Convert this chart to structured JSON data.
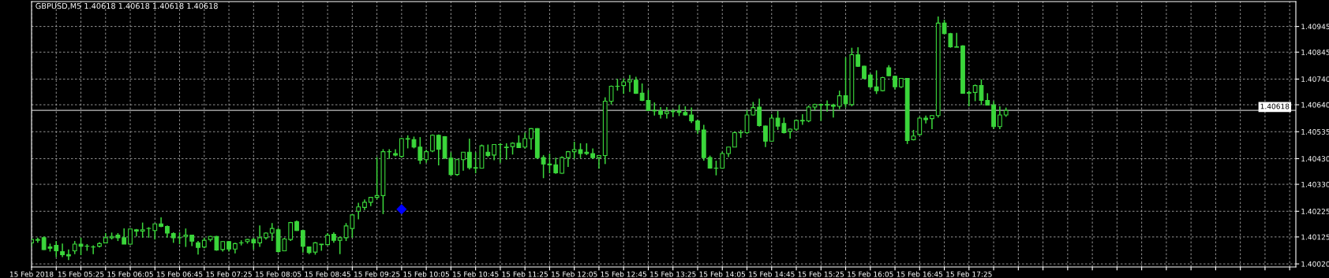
{
  "chart_data": {
    "type": "candlestick",
    "title": "GBPUSD,M5 1.40618 1.40618 1.40618 1.40618",
    "color": "#3bd63b",
    "grid": true,
    "x": [
      "2018-02-15T04:45",
      "2018-02-15T04:50",
      "2018-02-15T04:55",
      "2018-02-15T05:00",
      "2018-02-15T05:05",
      "2018-02-15T05:10",
      "2018-02-15T05:15",
      "2018-02-15T05:20",
      "2018-02-15T05:25",
      "2018-02-15T05:30",
      "2018-02-15T05:35",
      "2018-02-15T05:40",
      "2018-02-15T05:45",
      "2018-02-15T05:50",
      "2018-02-15T05:55",
      "2018-02-15T06:00",
      "2018-02-15T06:05",
      "2018-02-15T06:10",
      "2018-02-15T06:15",
      "2018-02-15T06:20",
      "2018-02-15T06:25",
      "2018-02-15T06:30",
      "2018-02-15T06:35",
      "2018-02-15T06:40",
      "2018-02-15T06:45",
      "2018-02-15T06:50",
      "2018-02-15T06:55",
      "2018-02-15T07:00",
      "2018-02-15T07:05",
      "2018-02-15T07:10",
      "2018-02-15T07:15",
      "2018-02-15T07:20",
      "2018-02-15T07:25",
      "2018-02-15T07:30",
      "2018-02-15T07:35",
      "2018-02-15T07:40",
      "2018-02-15T07:45",
      "2018-02-15T07:50",
      "2018-02-15T07:55",
      "2018-02-15T08:00",
      "2018-02-15T08:05",
      "2018-02-15T08:10",
      "2018-02-15T08:15",
      "2018-02-15T08:20",
      "2018-02-15T08:25",
      "2018-02-15T08:30",
      "2018-02-15T08:35",
      "2018-02-15T08:40",
      "2018-02-15T08:45",
      "2018-02-15T08:50",
      "2018-02-15T08:55",
      "2018-02-15T09:00",
      "2018-02-15T09:05",
      "2018-02-15T09:10",
      "2018-02-15T09:15",
      "2018-02-15T09:20",
      "2018-02-15T09:25",
      "2018-02-15T09:30",
      "2018-02-15T09:35",
      "2018-02-15T09:40",
      "2018-02-15T09:45",
      "2018-02-15T09:50",
      "2018-02-15T09:55",
      "2018-02-15T10:00",
      "2018-02-15T10:05",
      "2018-02-15T10:10",
      "2018-02-15T10:15",
      "2018-02-15T10:20",
      "2018-02-15T10:25",
      "2018-02-15T10:30",
      "2018-02-15T10:35",
      "2018-02-15T10:40",
      "2018-02-15T10:45",
      "2018-02-15T10:50",
      "2018-02-15T10:55",
      "2018-02-15T11:00",
      "2018-02-15T11:05",
      "2018-02-15T11:10",
      "2018-02-15T11:15",
      "2018-02-15T11:20",
      "2018-02-15T11:25",
      "2018-02-15T11:30",
      "2018-02-15T11:35",
      "2018-02-15T11:40",
      "2018-02-15T11:45",
      "2018-02-15T11:50",
      "2018-02-15T11:55",
      "2018-02-15T12:00",
      "2018-02-15T12:05",
      "2018-02-15T12:10",
      "2018-02-15T12:15",
      "2018-02-15T12:20",
      "2018-02-15T12:25",
      "2018-02-15T12:30",
      "2018-02-15T12:35",
      "2018-02-15T12:40",
      "2018-02-15T12:45",
      "2018-02-15T12:50",
      "2018-02-15T12:55",
      "2018-02-15T13:00",
      "2018-02-15T13:05",
      "2018-02-15T13:10",
      "2018-02-15T13:15",
      "2018-02-15T13:20",
      "2018-02-15T13:25",
      "2018-02-15T13:30",
      "2018-02-15T13:35",
      "2018-02-15T13:40",
      "2018-02-15T13:45",
      "2018-02-15T13:50",
      "2018-02-15T13:55",
      "2018-02-15T14:00",
      "2018-02-15T14:05",
      "2018-02-15T14:10",
      "2018-02-15T14:15",
      "2018-02-15T14:20",
      "2018-02-15T14:25",
      "2018-02-15T14:30",
      "2018-02-15T14:35",
      "2018-02-15T14:40",
      "2018-02-15T14:45",
      "2018-02-15T14:50",
      "2018-02-15T14:55",
      "2018-02-15T15:00",
      "2018-02-15T15:05",
      "2018-02-15T15:10",
      "2018-02-15T15:15",
      "2018-02-15T15:20",
      "2018-02-15T15:25",
      "2018-02-15T15:30",
      "2018-02-15T15:35",
      "2018-02-15T15:40",
      "2018-02-15T15:45",
      "2018-02-15T15:50",
      "2018-02-15T15:55",
      "2018-02-15T16:00",
      "2018-02-15T16:05",
      "2018-02-15T16:10",
      "2018-02-15T16:15",
      "2018-02-15T16:20",
      "2018-02-15T16:25",
      "2018-02-15T16:30",
      "2018-02-15T16:35",
      "2018-02-15T16:40",
      "2018-02-15T16:45",
      "2018-02-15T16:50",
      "2018-02-15T16:55",
      "2018-02-15T17:00",
      "2018-02-15T17:05",
      "2018-02-15T17:10",
      "2018-02-15T17:15",
      "2018-02-15T17:20",
      "2018-02-15T17:25",
      "2018-02-15T17:30",
      "2018-02-15T17:35",
      "2018-02-15T17:40",
      "2018-02-15T17:45",
      "2018-02-15T17:50",
      "2018-02-15T17:55"
    ],
    "ohlc": [
      [
        1.40102,
        1.40119,
        1.40086,
        1.40115
      ],
      [
        1.40112,
        1.40122,
        1.40102,
        1.40115
      ],
      [
        1.40122,
        1.40127,
        1.40074,
        1.40076
      ],
      [
        1.40086,
        1.40099,
        1.40068,
        1.40081
      ],
      [
        1.40092,
        1.40109,
        1.40046,
        1.40071
      ],
      [
        1.40068,
        1.40099,
        1.40046,
        1.40056
      ],
      [
        1.40056,
        1.40076,
        1.40035,
        1.40051
      ],
      [
        1.40071,
        1.40109,
        1.40058,
        1.40097
      ],
      [
        1.40097,
        1.40122,
        1.40054,
        1.40089
      ],
      [
        1.40089,
        1.40097,
        1.40071,
        1.40089
      ],
      [
        1.40086,
        1.40092,
        1.40058,
        1.40086
      ],
      [
        1.40089,
        1.40105,
        1.40084,
        1.40099
      ],
      [
        1.40102,
        1.4014,
        1.40102,
        1.40122
      ],
      [
        1.40122,
        1.40142,
        1.40115,
        1.40127
      ],
      [
        1.40132,
        1.4014,
        1.40109,
        1.40122
      ],
      [
        1.40122,
        1.40158,
        1.40097,
        1.40097
      ],
      [
        1.40097,
        1.40158,
        1.40095,
        1.40156
      ],
      [
        1.40153,
        1.40156,
        1.40127,
        1.40148
      ],
      [
        1.40148,
        1.40181,
        1.40122,
        1.40153
      ],
      [
        1.40158,
        1.40163,
        1.40122,
        1.40158
      ],
      [
        1.4015,
        1.40176,
        1.40115,
        1.40176
      ],
      [
        1.40176,
        1.40201,
        1.40163,
        1.40166
      ],
      [
        1.40166,
        1.4017,
        1.40122,
        1.4014
      ],
      [
        1.40138,
        1.40143,
        1.40102,
        1.40122
      ],
      [
        1.40122,
        1.40143,
        1.40097,
        1.40122
      ],
      [
        1.40127,
        1.40158,
        1.40086,
        1.40132
      ],
      [
        1.40132,
        1.40132,
        1.40089,
        1.40109
      ],
      [
        1.40102,
        1.40109,
        1.40056,
        1.40084
      ],
      [
        1.40086,
        1.40122,
        1.40081,
        1.40112
      ],
      [
        1.40115,
        1.40129,
        1.40107,
        1.40127
      ],
      [
        1.40127,
        1.40129,
        1.40071,
        1.40074
      ],
      [
        1.40076,
        1.40109,
        1.40068,
        1.40107
      ],
      [
        1.40107,
        1.40109,
        1.40068,
        1.40078
      ],
      [
        1.40078,
        1.40102,
        1.40061,
        1.40099
      ],
      [
        1.40102,
        1.40112,
        1.40092,
        1.40102
      ],
      [
        1.40107,
        1.40117,
        1.40099,
        1.40115
      ],
      [
        1.40115,
        1.40122,
        1.40076,
        1.40102
      ],
      [
        1.40102,
        1.4017,
        1.40086,
        1.40122
      ],
      [
        1.40122,
        1.40143,
        1.40115,
        1.4014
      ],
      [
        1.4014,
        1.40179,
        1.40109,
        1.40158
      ],
      [
        1.40153,
        1.4016,
        1.40064,
        1.40068
      ],
      [
        1.40071,
        1.40122,
        1.40071,
        1.40117
      ],
      [
        1.40115,
        1.40184,
        1.40109,
        1.40181
      ],
      [
        1.40184,
        1.40189,
        1.40148,
        1.4015
      ],
      [
        1.4015,
        1.40153,
        1.40064,
        1.40089
      ],
      [
        1.40086,
        1.40086,
        1.40058,
        1.40064
      ],
      [
        1.40066,
        1.40105,
        1.40056,
        1.40102
      ],
      [
        1.40097,
        1.40097,
        1.40071,
        1.40095
      ],
      [
        1.40095,
        1.4014,
        1.40092,
        1.40132
      ],
      [
        1.40135,
        1.40143,
        1.40102,
        1.40112
      ],
      [
        1.40112,
        1.40127,
        1.40058,
        1.40122
      ],
      [
        1.40122,
        1.40179,
        1.40109,
        1.40168
      ],
      [
        1.40158,
        1.40214,
        1.40122,
        1.40211
      ],
      [
        1.40225,
        1.40258,
        1.40194,
        1.40242
      ],
      [
        1.4024,
        1.40271,
        1.4023,
        1.4026
      ],
      [
        1.4026,
        1.40281,
        1.40245,
        1.40279
      ],
      [
        1.40279,
        1.40436,
        1.40271,
        1.40286
      ],
      [
        1.40286,
        1.40467,
        1.40214,
        1.40457
      ],
      [
        1.40457,
        1.40467,
        1.40429,
        1.40457
      ],
      [
        1.4045,
        1.40467,
        1.40439,
        1.40444
      ],
      [
        1.40439,
        1.40511,
        1.40434,
        1.40508
      ],
      [
        1.40508,
        1.40521,
        1.4047,
        1.40506
      ],
      [
        1.40504,
        1.40516,
        1.4047,
        1.40475
      ],
      [
        1.40475,
        1.40514,
        1.40409,
        1.40424
      ],
      [
        1.40426,
        1.40465,
        1.40414,
        1.40457
      ],
      [
        1.4046,
        1.40524,
        1.40455,
        1.40521
      ],
      [
        1.40521,
        1.40524,
        1.40404,
        1.40467
      ],
      [
        1.40516,
        1.40518,
        1.40429,
        1.40432
      ],
      [
        1.40432,
        1.40455,
        1.40365,
        1.40368
      ],
      [
        1.40368,
        1.40429,
        1.40363,
        1.40426
      ],
      [
        1.40426,
        1.40455,
        1.40383,
        1.40455
      ],
      [
        1.40455,
        1.40508,
        1.40388,
        1.40395
      ],
      [
        1.40395,
        1.40455,
        1.40373,
        1.40393
      ],
      [
        1.40393,
        1.40485,
        1.40393,
        1.4048
      ],
      [
        1.40455,
        1.40485,
        1.40436,
        1.40442
      ],
      [
        1.40444,
        1.40487,
        1.40424,
        1.40485
      ],
      [
        1.40485,
        1.4049,
        1.40414,
        1.40485
      ],
      [
        1.40473,
        1.4049,
        1.40426,
        1.40475
      ],
      [
        1.40477,
        1.40494,
        1.40446,
        1.4049
      ],
      [
        1.4049,
        1.40521,
        1.40473,
        1.40473
      ],
      [
        1.40475,
        1.40531,
        1.4047,
        1.40508
      ],
      [
        1.40508,
        1.40549,
        1.40465,
        1.40547
      ],
      [
        1.40547,
        1.40549,
        1.40429,
        1.40434
      ],
      [
        1.40434,
        1.40444,
        1.40354,
        1.40409
      ],
      [
        1.40409,
        1.4045,
        1.40373,
        1.40406
      ],
      [
        1.40406,
        1.40434,
        1.40371,
        1.40375
      ],
      [
        1.40373,
        1.40439,
        1.40371,
        1.40434
      ],
      [
        1.40434,
        1.4046,
        1.40398,
        1.40457
      ],
      [
        1.40457,
        1.40496,
        1.40429,
        1.40465
      ],
      [
        1.40465,
        1.4049,
        1.40432,
        1.4045
      ],
      [
        1.40455,
        1.4049,
        1.40444,
        1.4045
      ],
      [
        1.4045,
        1.4047,
        1.40429,
        1.40434
      ],
      [
        1.40434,
        1.40444,
        1.40391,
        1.40442
      ],
      [
        1.40442,
        1.40669,
        1.40409,
        1.40654
      ],
      [
        1.40654,
        1.40715,
        1.40641,
        1.40712
      ],
      [
        1.40712,
        1.40741,
        1.40695,
        1.40712
      ],
      [
        1.40715,
        1.40743,
        1.40682,
        1.40729
      ],
      [
        1.40729,
        1.40756,
        1.4069,
        1.40736
      ],
      [
        1.40736,
        1.40749,
        1.40682,
        1.40685
      ],
      [
        1.40685,
        1.40723,
        1.40654,
        1.40657
      ],
      [
        1.40657,
        1.40698,
        1.40616,
        1.40618
      ],
      [
        1.40618,
        1.40649,
        1.40598,
        1.40616
      ],
      [
        1.40616,
        1.40631,
        1.40586,
        1.40603
      ],
      [
        1.40606,
        1.40631,
        1.40586,
        1.40613
      ],
      [
        1.40613,
        1.40623,
        1.40593,
        1.40616
      ],
      [
        1.40616,
        1.40639,
        1.40596,
        1.4061
      ],
      [
        1.4061,
        1.40634,
        1.40598,
        1.406
      ],
      [
        1.406,
        1.40629,
        1.40569,
        1.40577
      ],
      [
        1.40577,
        1.40582,
        1.40526,
        1.40542
      ],
      [
        1.40542,
        1.40562,
        1.40422,
        1.40434
      ],
      [
        1.40434,
        1.40442,
        1.40391,
        1.40393
      ],
      [
        1.40393,
        1.40422,
        1.40365,
        1.40393
      ],
      [
        1.40393,
        1.40457,
        1.40391,
        1.4045
      ],
      [
        1.4045,
        1.40475,
        1.40436,
        1.40475
      ],
      [
        1.40475,
        1.40536,
        1.40475,
        1.40531
      ],
      [
        1.40531,
        1.40542,
        1.40511,
        1.40531
      ],
      [
        1.40531,
        1.4062,
        1.40526,
        1.406
      ],
      [
        1.406,
        1.40651,
        1.40598,
        1.40629
      ],
      [
        1.40631,
        1.40664,
        1.40555,
        1.40559
      ],
      [
        1.40557,
        1.40559,
        1.40475,
        1.40498
      ],
      [
        1.40498,
        1.40603,
        1.40496,
        1.40588
      ],
      [
        1.40588,
        1.40616,
        1.40542,
        1.40557
      ],
      [
        1.40567,
        1.4059,
        1.40528,
        1.40531
      ],
      [
        1.40536,
        1.40547,
        1.40508,
        1.40545
      ],
      [
        1.40545,
        1.40582,
        1.40539,
        1.40579
      ],
      [
        1.40579,
        1.40603,
        1.40562,
        1.40577
      ],
      [
        1.40577,
        1.40637,
        1.40572,
        1.40631
      ],
      [
        1.40631,
        1.40644,
        1.40618,
        1.40641
      ],
      [
        1.40641,
        1.40644,
        1.40577,
        1.40639
      ],
      [
        1.40639,
        1.40657,
        1.40613,
        1.40641
      ],
      [
        1.40639,
        1.40644,
        1.4059,
        1.40634
      ],
      [
        1.40634,
        1.40695,
        1.40623,
        1.40675
      ],
      [
        1.40675,
        1.40825,
        1.40629,
        1.40644
      ],
      [
        1.40641,
        1.40862,
        1.40634,
        1.40835
      ],
      [
        1.40835,
        1.40864,
        1.40787,
        1.4079
      ],
      [
        1.4079,
        1.40792,
        1.40739,
        1.40743
      ],
      [
        1.40756,
        1.40761,
        1.40705,
        1.4071
      ],
      [
        1.4071,
        1.40774,
        1.40682,
        1.40695
      ],
      [
        1.40695,
        1.40749,
        1.40692,
        1.40746
      ],
      [
        1.40784,
        1.40794,
        1.40751,
        1.40753
      ],
      [
        1.40751,
        1.40753,
        1.407,
        1.4071
      ],
      [
        1.4071,
        1.40743,
        1.40705,
        1.40743
      ],
      [
        1.40743,
        1.40743,
        1.40487,
        1.40501
      ],
      [
        1.40504,
        1.40542,
        1.40501,
        1.40518
      ],
      [
        1.40524,
        1.40593,
        1.40521,
        1.40588
      ],
      [
        1.40588,
        1.40598,
        1.40567,
        1.40582
      ],
      [
        1.40586,
        1.406,
        1.40545,
        1.40598
      ],
      [
        1.40598,
        1.40984,
        1.4059,
        1.40958
      ],
      [
        1.40958,
        1.40971,
        1.40915,
        1.40917
      ],
      [
        1.40917,
        1.4092,
        1.40862,
        1.40866
      ],
      [
        1.40866,
        1.4092,
        1.40864,
        1.40864
      ],
      [
        1.40869,
        1.40872,
        1.40685,
        1.40685
      ],
      [
        1.40685,
        1.40695,
        1.40634,
        1.40688
      ],
      [
        1.40688,
        1.40719,
        1.40654,
        1.40715
      ],
      [
        1.40715,
        1.40739,
        1.40639,
        1.40657
      ],
      [
        1.40657,
        1.40685,
        1.40639,
        1.40639
      ],
      [
        1.40639,
        1.40654,
        1.40545,
        1.40555
      ],
      [
        1.40555,
        1.40634,
        1.40545,
        1.406
      ],
      [
        1.406,
        1.40629,
        1.40593,
        1.40618
      ]
    ],
    "series": [
      {
        "type": "scatter",
        "x": [
          "2018-02-15T09:45"
        ],
        "values": [
          1.40233
        ],
        "color": "#0000ff",
        "marker": "diamond"
      }
    ],
    "xlim": [
      "2018-02-15T04:45",
      "2018-02-15T21:50"
    ],
    "xticks": [
      {
        "value": "2018-02-15T04:45",
        "label": "15 Feb 2018"
      },
      {
        "value": "2018-02-15T05:05",
        "label": null
      },
      {
        "value": "2018-02-15T05:25",
        "label": "15 Feb 05:25"
      },
      {
        "value": "2018-02-15T05:45",
        "label": null
      },
      {
        "value": "2018-02-15T06:05",
        "label": "15 Feb 06:05"
      },
      {
        "value": "2018-02-15T06:25",
        "label": null
      },
      {
        "value": "2018-02-15T06:45",
        "label": "15 Feb 06:45"
      },
      {
        "value": "2018-02-15T07:05",
        "label": null
      },
      {
        "value": "2018-02-15T07:25",
        "label": "15 Feb 07:25"
      },
      {
        "value": "2018-02-15T07:45",
        "label": null
      },
      {
        "value": "2018-02-15T08:05",
        "label": "15 Feb 08:05"
      },
      {
        "value": "2018-02-15T08:25",
        "label": null
      },
      {
        "value": "2018-02-15T08:45",
        "label": "15 Feb 08:45"
      },
      {
        "value": "2018-02-15T09:05",
        "label": null
      },
      {
        "value": "2018-02-15T09:25",
        "label": "15 Feb 09:25"
      },
      {
        "value": "2018-02-15T09:45",
        "label": null
      },
      {
        "value": "2018-02-15T10:05",
        "label": "15 Feb 10:05"
      },
      {
        "value": "2018-02-15T10:25",
        "label": null
      },
      {
        "value": "2018-02-15T10:45",
        "label": "15 Feb 10:45"
      },
      {
        "value": "2018-02-15T11:05",
        "label": null
      },
      {
        "value": "2018-02-15T11:25",
        "label": "15 Feb 11:25"
      },
      {
        "value": "2018-02-15T11:45",
        "label": null
      },
      {
        "value": "2018-02-15T12:05",
        "label": "15 Feb 12:05"
      },
      {
        "value": "2018-02-15T12:25",
        "label": null
      },
      {
        "value": "2018-02-15T12:45",
        "label": "15 Feb 12:45"
      },
      {
        "value": "2018-02-15T13:05",
        "label": null
      },
      {
        "value": "2018-02-15T13:25",
        "label": "15 Feb 13:25"
      },
      {
        "value": "2018-02-15T13:45",
        "label": null
      },
      {
        "value": "2018-02-15T14:05",
        "label": "15 Feb 14:05"
      },
      {
        "value": "2018-02-15T14:25",
        "label": null
      },
      {
        "value": "2018-02-15T14:45",
        "label": "15 Feb 14:45"
      },
      {
        "value": "2018-02-15T15:05",
        "label": null
      },
      {
        "value": "2018-02-15T15:25",
        "label": "15 Feb 15:25"
      },
      {
        "value": "2018-02-15T15:45",
        "label": null
      },
      {
        "value": "2018-02-15T16:05",
        "label": "15 Feb 16:05"
      },
      {
        "value": "2018-02-15T16:25",
        "label": null
      },
      {
        "value": "2018-02-15T16:45",
        "label": "15 Feb 16:45"
      },
      {
        "value": "2018-02-15T17:05",
        "label": null
      },
      {
        "value": "2018-02-15T17:25",
        "label": "15 Feb 17:25"
      },
      {
        "value": "2018-02-15T17:45",
        "label": null
      },
      {
        "value": "2018-02-15T18:05",
        "label": null
      },
      {
        "value": "2018-02-15T18:25",
        "label": null
      },
      {
        "value": "2018-02-15T18:45",
        "label": null
      },
      {
        "value": "2018-02-15T19:05",
        "label": null
      },
      {
        "value": "2018-02-15T19:25",
        "label": null
      },
      {
        "value": "2018-02-15T19:45",
        "label": null
      },
      {
        "value": "2018-02-15T20:05",
        "label": null
      },
      {
        "value": "2018-02-15T20:25",
        "label": null
      },
      {
        "value": "2018-02-15T20:45",
        "label": null
      },
      {
        "value": "2018-02-15T21:05",
        "label": null
      },
      {
        "value": "2018-02-15T21:25",
        "label": null
      },
      {
        "value": "2018-02-15T21:45",
        "label": null
      }
    ],
    "ylim": [
      1.40008,
      1.41042
    ],
    "yticks": [
      {
        "value": 1.4002,
        "label": "1.40020"
      },
      {
        "value": 1.40125,
        "label": "1.40125"
      },
      {
        "value": 1.40225,
        "label": "1.40225"
      },
      {
        "value": 1.4033,
        "label": "1.40330"
      },
      {
        "value": 1.4043,
        "label": "1.40430"
      },
      {
        "value": 1.40535,
        "label": "1.40535"
      },
      {
        "value": 1.4064,
        "label": "1.40640"
      },
      {
        "value": 1.4074,
        "label": "1.40740"
      },
      {
        "value": 1.40845,
        "label": "1.40845"
      },
      {
        "value": 1.40945,
        "label": "1.40945"
      }
    ],
    "ref_lines": [
      {
        "axis": "y",
        "value": 1.40618,
        "label": "1.40618",
        "color": "#c0c0c0"
      }
    ]
  }
}
